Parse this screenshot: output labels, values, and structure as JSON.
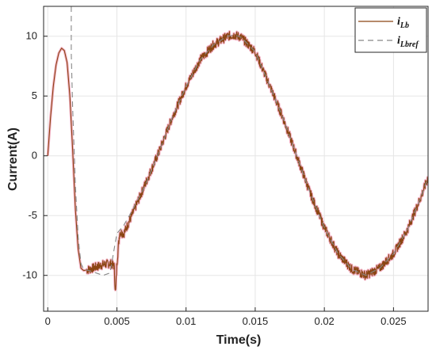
{
  "chart_data": {
    "type": "line",
    "title": "",
    "xlabel": "Time(s)",
    "ylabel": "Current(A)",
    "xlim": [
      -0.0003,
      0.0275
    ],
    "ylim": [
      -13,
      12.5
    ],
    "xticks": [
      0,
      0.005,
      0.01,
      0.015,
      0.02,
      0.025
    ],
    "xtick_labels": [
      "0",
      "0.005",
      "0.01",
      "0.015",
      "0.02",
      "0.025"
    ],
    "yticks": [
      -10,
      -5,
      0,
      5,
      10
    ],
    "ytick_labels": [
      "-10",
      "-5",
      "0",
      "5",
      "10"
    ],
    "grid": true,
    "legend_position": "top-right",
    "legend": [
      {
        "main": "i",
        "sub": "Lb"
      },
      {
        "main": "i",
        "sub": "Lbref"
      }
    ],
    "series": [
      {
        "name": "iLb",
        "color": "#8B4513",
        "halo_color": "#f2a8bf",
        "style": "solid-noisy",
        "x": [
          0,
          0.0002,
          0.0004,
          0.0006,
          0.0008,
          0.001,
          0.0012,
          0.0014,
          0.0016,
          0.0018,
          0.002,
          0.0022,
          0.0024,
          0.0026,
          0.003,
          0.0035,
          0.004,
          0.0045,
          0.0048,
          0.0049,
          0.005,
          0.0052,
          0.0055,
          0.006,
          0.007,
          0.008,
          0.009,
          0.01,
          0.011,
          0.012,
          0.013,
          0.0135,
          0.014,
          0.015,
          0.016,
          0.017,
          0.018,
          0.019,
          0.02,
          0.021,
          0.022,
          0.023,
          0.024,
          0.025,
          0.026,
          0.027,
          0.0275
        ],
        "y": [
          0,
          3.2,
          5.8,
          7.6,
          8.6,
          9.0,
          8.8,
          7.8,
          5.0,
          0.5,
          -4.5,
          -7.8,
          -9.4,
          -9.6,
          -9.5,
          -9.3,
          -9.1,
          -9.0,
          -9.2,
          -11.6,
          -9.0,
          -6.4,
          -6.5,
          -5.2,
          -2.5,
          0.2,
          3.2,
          5.8,
          8.0,
          9.3,
          10.0,
          10.1,
          9.9,
          8.7,
          6.0,
          3.2,
          0.0,
          -3.2,
          -6.0,
          -8.2,
          -9.5,
          -10.0,
          -9.4,
          -8.2,
          -6.2,
          -3.4,
          -1.8
        ]
      },
      {
        "name": "iLbref",
        "color": "#888888",
        "style": "dashed",
        "x": [
          0.0017,
          0.0017,
          0.0018,
          0.002,
          0.0022,
          0.0024,
          0.0026,
          0.003,
          0.0035,
          0.004,
          0.0045,
          0.005,
          0.0055,
          0.006,
          0.007,
          0.008,
          0.009,
          0.01,
          0.011,
          0.012,
          0.013,
          0.0135,
          0.014,
          0.015,
          0.016,
          0.017,
          0.018,
          0.019,
          0.02,
          0.021,
          0.022,
          0.023,
          0.024,
          0.025,
          0.026,
          0.027,
          0.0275
        ],
        "y": [
          12.5,
          8.6,
          4.0,
          -2.5,
          -6.8,
          -9.0,
          -9.5,
          -9.6,
          -9.8,
          -10.0,
          -9.8,
          -6.5,
          -5.8,
          -4.8,
          -2.6,
          0.2,
          3.2,
          5.8,
          8.0,
          9.3,
          10.0,
          10.1,
          9.9,
          8.7,
          6.0,
          3.2,
          0.0,
          -3.2,
          -6.0,
          -8.2,
          -9.5,
          -10.0,
          -9.4,
          -8.2,
          -6.2,
          -3.4,
          -1.8
        ]
      }
    ]
  }
}
